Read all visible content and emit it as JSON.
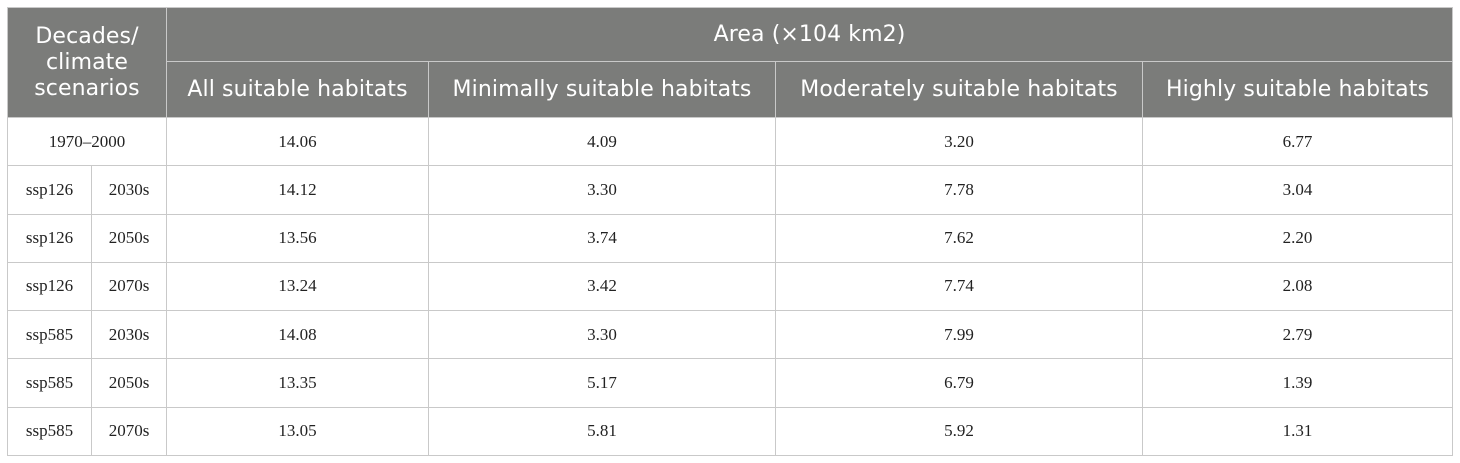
{
  "table": {
    "header": {
      "corner": "Decades/ climate scenarios",
      "group": "Area (×104 km2)",
      "columns": [
        "All suitable habitats",
        "Minimally suitable habitats",
        "Moderately suitable habitats",
        "Highly suitable habitats"
      ]
    },
    "baseline": {
      "label": "1970–2000",
      "values": [
        "14.06",
        "4.09",
        "3.20",
        "6.77"
      ]
    },
    "rows": [
      {
        "scenario": "ssp126",
        "decade": "2030s",
        "values": [
          "14.12",
          "3.30",
          "7.78",
          "3.04"
        ]
      },
      {
        "scenario": "ssp126",
        "decade": "2050s",
        "values": [
          "13.56",
          "3.74",
          "7.62",
          "2.20"
        ]
      },
      {
        "scenario": "ssp126",
        "decade": "2070s",
        "values": [
          "13.24",
          "3.42",
          "7.74",
          "2.08"
        ]
      },
      {
        "scenario": "ssp585",
        "decade": "2030s",
        "values": [
          "14.08",
          "3.30",
          "7.99",
          "2.79"
        ]
      },
      {
        "scenario": "ssp585",
        "decade": "2050s",
        "values": [
          "13.35",
          "5.17",
          "6.79",
          "1.39"
        ]
      },
      {
        "scenario": "ssp585",
        "decade": "2070s",
        "values": [
          "13.05",
          "5.81",
          "5.92",
          "1.31"
        ]
      }
    ]
  }
}
